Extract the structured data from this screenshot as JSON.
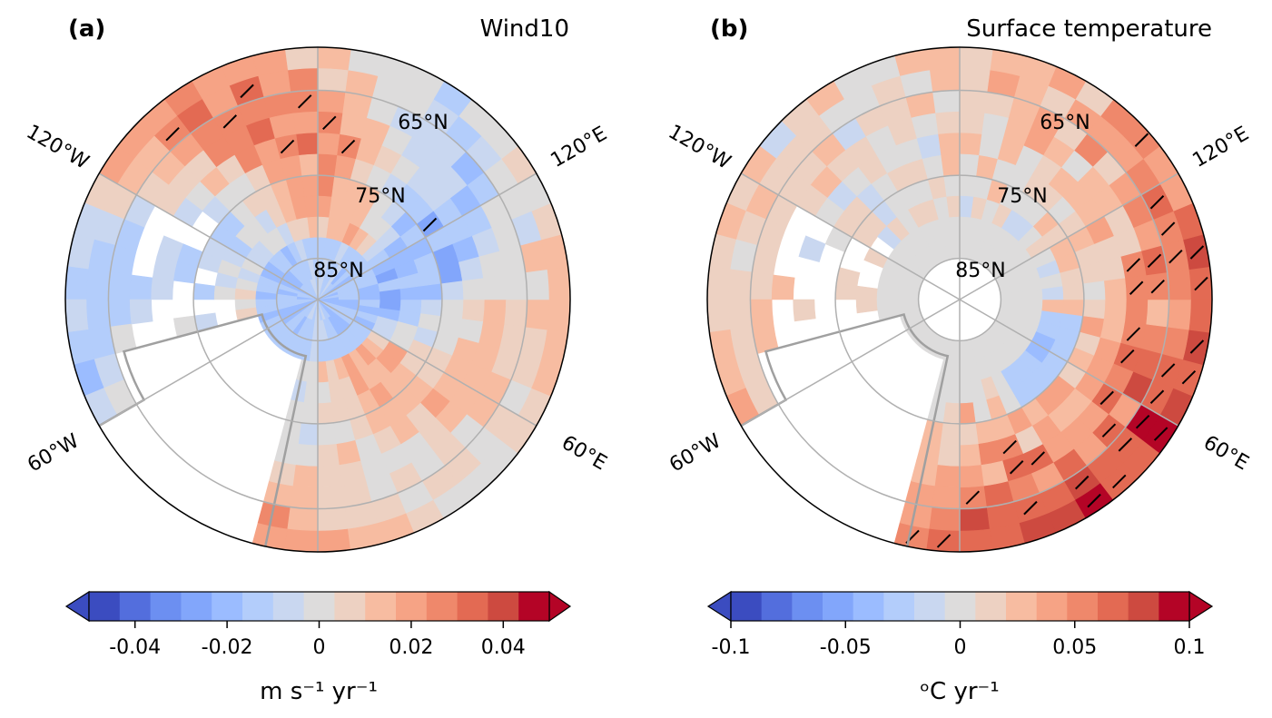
{
  "colors": [
    "#3b4cc0",
    "#536edd",
    "#6c8ff1",
    "#82a6fb",
    "#9bbcff",
    "#b3cdfb",
    "#c9d7f0",
    "#dddcdc",
    "#edd1c2",
    "#f7bca1",
    "#f6a385",
    "#ef886b",
    "#e36a53",
    "#cd4a40",
    "#b40426"
  ],
  "panels": [
    {
      "label": "(a)",
      "title": "Wind10",
      "lat_labels": [
        "65°N",
        "75°N",
        "85°N"
      ],
      "lon_labels": {
        "w120": "120°W",
        "e120": "120°E",
        "w60": "60°W",
        "e60": "60°E"
      },
      "colorbar": {
        "range": [
          -0.05,
          0.05
        ],
        "extend": "both",
        "ticks": [
          "-0.04",
          "-0.02",
          "0",
          "0.02",
          "0.04"
        ],
        "tick_values": [
          -0.04,
          -0.02,
          0,
          0.02,
          0.04
        ],
        "unit": "m s⁻¹ yr⁻¹"
      }
    },
    {
      "label": "(b)",
      "title": "Surface temperature",
      "lat_labels": [
        "65°N",
        "75°N",
        "85°N"
      ],
      "lon_labels": {
        "w120": "120°W",
        "e120": "120°E",
        "w60": "60°W",
        "e60": "60°E"
      },
      "colorbar": {
        "range": [
          -0.1,
          0.1
        ],
        "extend": "both",
        "ticks": [
          "-0.1",
          "-0.05",
          "0",
          "0.05",
          "0.1"
        ],
        "tick_values": [
          -0.1,
          -0.05,
          0,
          0.05,
          0.1
        ],
        "unit": "ᵒC  yr⁻¹"
      }
    }
  ]
}
